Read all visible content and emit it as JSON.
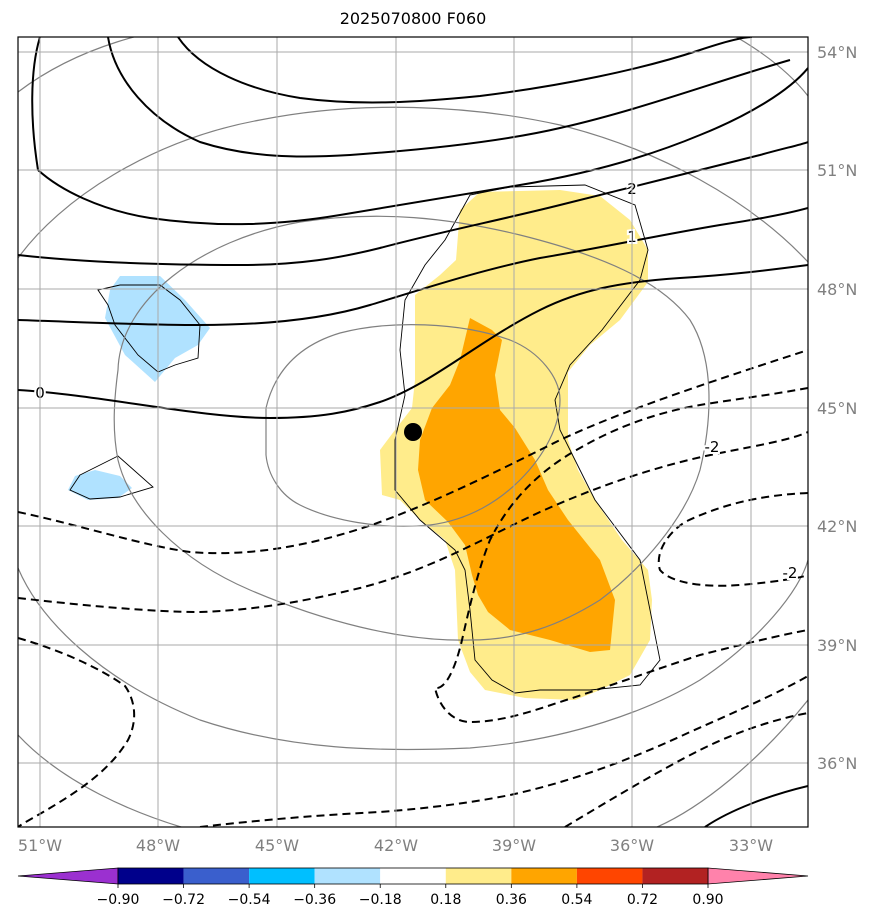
{
  "title": "2025070800 F060",
  "axes": {
    "lon_ticks": [
      "51°W",
      "48°W",
      "45°W",
      "42°W",
      "39°W",
      "36°W",
      "33°W"
    ],
    "lat_ticks": [
      "54°N",
      "51°N",
      "48°N",
      "45°N",
      "42°N",
      "39°N",
      "36°N"
    ]
  },
  "contour_labels": [
    "2",
    "1",
    "0",
    "-2",
    "-2"
  ],
  "colorbar": {
    "ticks": [
      "−0.90",
      "−0.72",
      "−0.54",
      "−0.36",
      "−0.18",
      "0.18",
      "0.36",
      "0.54",
      "0.72",
      "0.90"
    ],
    "colors": [
      "#9b30d0",
      "#00008b",
      "#3a5fcd",
      "#00bfff",
      "#b0e2ff",
      "#ffffff",
      "#ffec8b",
      "#ffa500",
      "#ff4500",
      "#b22222",
      "#ff82ab"
    ]
  },
  "shading_colors": {
    "light_yellow": "#ffec8b",
    "orange": "#ffa500",
    "light_blue": "#b0e2ff"
  }
}
